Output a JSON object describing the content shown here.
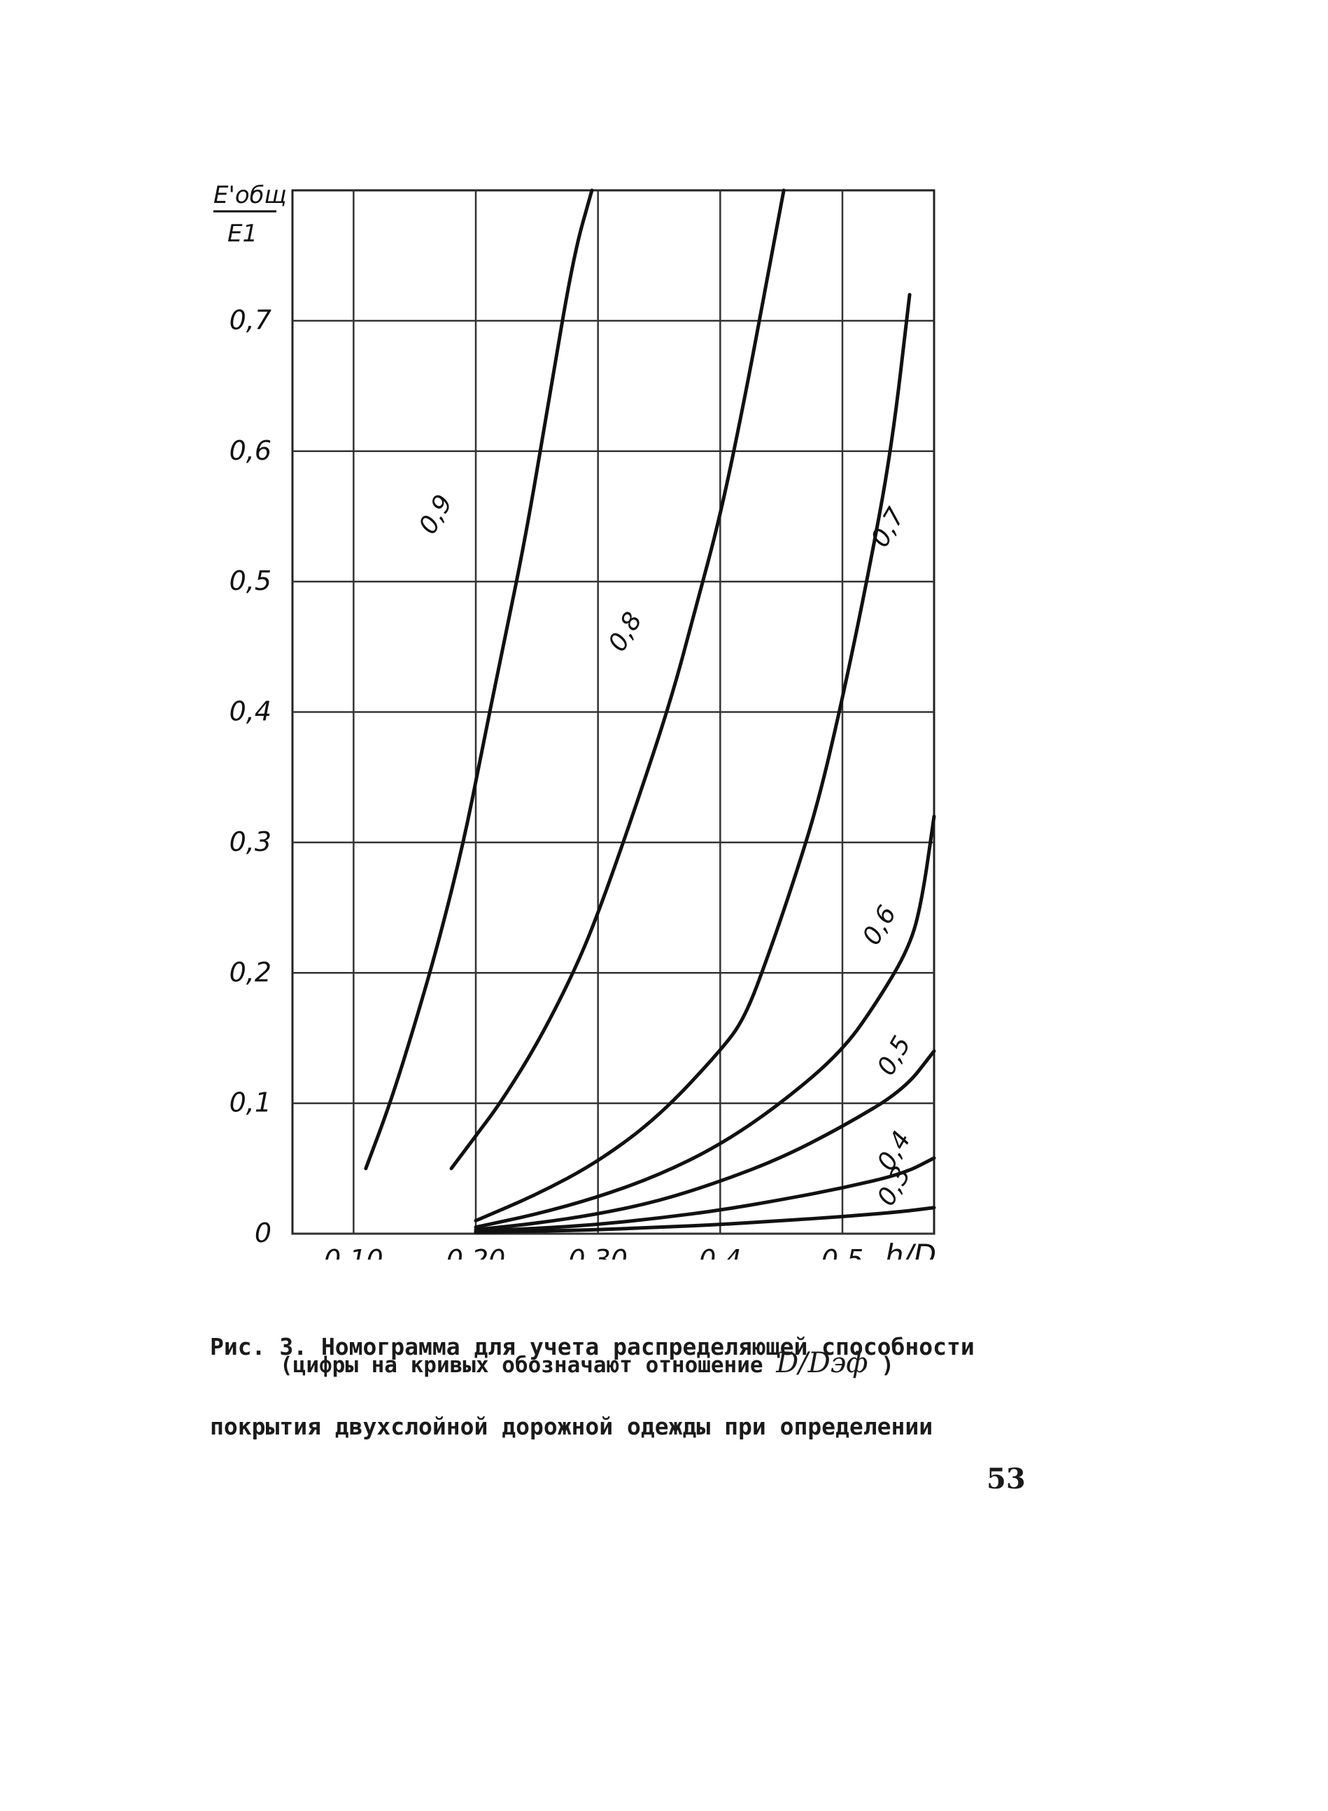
{
  "chart_data": {
    "type": "line",
    "ylabel": "E'общ / E1",
    "ylabel_parts": {
      "num": "E'общ",
      "den": "E1"
    },
    "xlabel": "h/D",
    "xlim": [
      0.05,
      0.55
    ],
    "ylim": [
      0,
      0.8
    ],
    "grid": true,
    "x_ticks": [
      {
        "value": 0.1,
        "label": "0,10"
      },
      {
        "value": 0.2,
        "label": "0,20"
      },
      {
        "value": 0.3,
        "label": "0,30"
      },
      {
        "value": 0.4,
        "label": "0,4"
      },
      {
        "value": 0.5,
        "label": "0,5"
      }
    ],
    "y_ticks": [
      {
        "value": 0.0,
        "label": "0"
      },
      {
        "value": 0.1,
        "label": "0,1"
      },
      {
        "value": 0.2,
        "label": "0,2"
      },
      {
        "value": 0.3,
        "label": "0,3"
      },
      {
        "value": 0.4,
        "label": "0,4"
      },
      {
        "value": 0.5,
        "label": "0,5"
      },
      {
        "value": 0.6,
        "label": "0,6"
      },
      {
        "value": 0.7,
        "label": "0,7"
      }
    ],
    "series": [
      {
        "name": "0,9",
        "label_at": [
          0.165,
          0.535
        ],
        "points": [
          [
            0.11,
            0.05
          ],
          [
            0.13,
            0.1
          ],
          [
            0.15,
            0.16
          ],
          [
            0.17,
            0.225
          ],
          [
            0.19,
            0.3
          ],
          [
            0.205,
            0.37
          ],
          [
            0.22,
            0.44
          ],
          [
            0.24,
            0.53
          ],
          [
            0.26,
            0.64
          ],
          [
            0.28,
            0.75
          ],
          [
            0.295,
            0.8
          ]
        ]
      },
      {
        "name": "0,8",
        "label_at": [
          0.32,
          0.445
        ],
        "points": [
          [
            0.18,
            0.05
          ],
          [
            0.2,
            0.075
          ],
          [
            0.22,
            0.1
          ],
          [
            0.25,
            0.145
          ],
          [
            0.28,
            0.2
          ],
          [
            0.3,
            0.245
          ],
          [
            0.33,
            0.325
          ],
          [
            0.36,
            0.41
          ],
          [
            0.38,
            0.48
          ],
          [
            0.4,
            0.55
          ],
          [
            0.42,
            0.64
          ],
          [
            0.44,
            0.74
          ],
          [
            0.452,
            0.8
          ]
        ]
      },
      {
        "name": "0,7",
        "label_at": [
          0.535,
          0.525
        ],
        "points": [
          [
            0.2,
            0.01
          ],
          [
            0.25,
            0.03
          ],
          [
            0.3,
            0.055
          ],
          [
            0.35,
            0.09
          ],
          [
            0.4,
            0.14
          ],
          [
            0.42,
            0.165
          ],
          [
            0.44,
            0.215
          ],
          [
            0.46,
            0.27
          ],
          [
            0.48,
            0.33
          ],
          [
            0.5,
            0.41
          ],
          [
            0.52,
            0.5
          ],
          [
            0.54,
            0.6
          ],
          [
            0.555,
            0.72
          ]
        ]
      },
      {
        "name": "0,6",
        "label_at": [
          0.528,
          0.22
        ],
        "points": [
          [
            0.2,
            0.005
          ],
          [
            0.25,
            0.015
          ],
          [
            0.3,
            0.028
          ],
          [
            0.35,
            0.045
          ],
          [
            0.4,
            0.068
          ],
          [
            0.45,
            0.1
          ],
          [
            0.5,
            0.14
          ],
          [
            0.53,
            0.18
          ],
          [
            0.555,
            0.22
          ],
          [
            0.565,
            0.255
          ],
          [
            0.575,
            0.32
          ]
        ]
      },
      {
        "name": "0,5",
        "label_at": [
          0.54,
          0.12
        ],
        "points": [
          [
            0.2,
            0.003
          ],
          [
            0.25,
            0.008
          ],
          [
            0.3,
            0.015
          ],
          [
            0.35,
            0.025
          ],
          [
            0.4,
            0.04
          ],
          [
            0.45,
            0.058
          ],
          [
            0.5,
            0.082
          ],
          [
            0.55,
            0.11
          ],
          [
            0.575,
            0.14
          ]
        ]
      },
      {
        "name": "0,4",
        "label_at": [
          0.54,
          0.047
        ],
        "points": [
          [
            0.2,
            0.002
          ],
          [
            0.25,
            0.004
          ],
          [
            0.3,
            0.007
          ],
          [
            0.35,
            0.012
          ],
          [
            0.4,
            0.018
          ],
          [
            0.45,
            0.026
          ],
          [
            0.5,
            0.035
          ],
          [
            0.55,
            0.046
          ],
          [
            0.575,
            0.058
          ]
        ]
      },
      {
        "name": "0,3",
        "label_at": [
          0.54,
          0.02
        ],
        "points": [
          [
            0.2,
            0.001
          ],
          [
            0.25,
            0.002
          ],
          [
            0.3,
            0.003
          ],
          [
            0.35,
            0.005
          ],
          [
            0.4,
            0.007
          ],
          [
            0.45,
            0.01
          ],
          [
            0.5,
            0.013
          ],
          [
            0.55,
            0.017
          ],
          [
            0.575,
            0.02
          ]
        ]
      }
    ]
  },
  "caption": {
    "line1": "Рис. 3. Номограмма для учета распределяющей способности",
    "line2": "покрытия двухслойной дорожной одежды при определении",
    "line3_prefix": "(цифры на кривых обозначают отношение",
    "line3_ratio": "D/Dэф",
    "line3_suffix": ")"
  },
  "page_number": "53"
}
